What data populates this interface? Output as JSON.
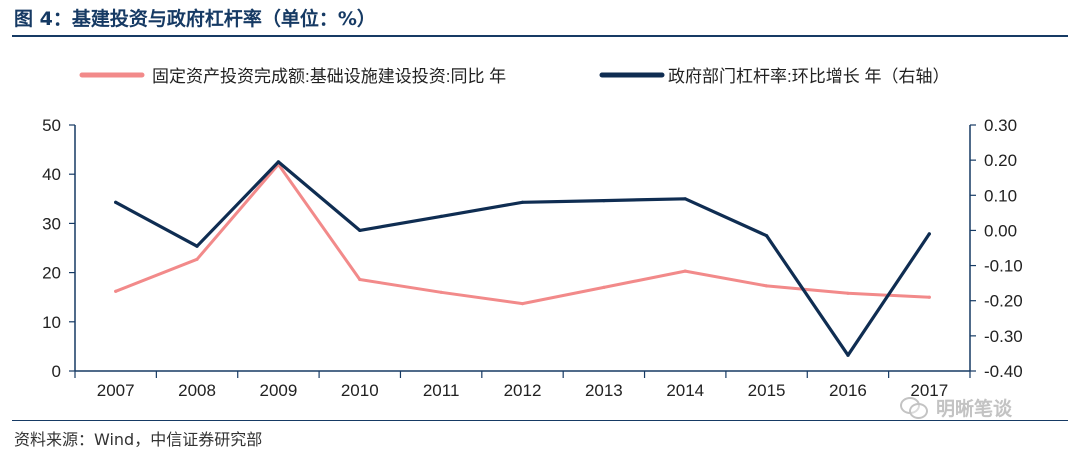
{
  "title": "图 4：基建投资与政府杠杆率（单位：%）",
  "source": "资料来源：Wind，中信证券研究部",
  "watermark": "明晰笔谈",
  "colors": {
    "title": "#163a64",
    "series1": "#f28a8a",
    "series2": "#0f2d52",
    "axis": "#163a64"
  },
  "chart_data": {
    "type": "line",
    "x": [
      "2007",
      "2008",
      "2009",
      "2010",
      "2011",
      "2012",
      "2013",
      "2014",
      "2015",
      "2016",
      "2017"
    ],
    "series": [
      {
        "name": "固定资产投资完成额:基础设施建设投资:同比 年",
        "axis": "left",
        "color": "#f28a8a",
        "x": [
          "2007",
          "2008",
          "2009",
          "2010",
          "2011",
          "2012",
          "2013",
          "2014",
          "2015",
          "2016",
          "2017"
        ],
        "values": [
          16.2,
          22.7,
          42.0,
          18.6,
          16.0,
          13.7,
          17.0,
          20.3,
          17.3,
          15.8,
          15.0
        ]
      },
      {
        "name": "政府部门杠杆率:环比增长 年（右轴）",
        "axis": "right",
        "color": "#0f2d52",
        "x": [
          "2007",
          "2008",
          "2009",
          "2010",
          "2011",
          "2012",
          "2013",
          "2014",
          "2015",
          "2016",
          "2017"
        ],
        "values": [
          0.08,
          -0.045,
          0.195,
          0.0,
          0.04,
          0.08,
          0.085,
          0.09,
          -0.015,
          -0.355,
          -0.01
        ]
      }
    ],
    "y_left": {
      "ticks": [
        "0",
        "10",
        "20",
        "30",
        "40",
        "50"
      ],
      "ylim": [
        0,
        50
      ]
    },
    "y_right": {
      "ticks": [
        "-0.40",
        "-0.30",
        "-0.20",
        "-0.10",
        "0.00",
        "0.10",
        "0.20",
        "0.30"
      ],
      "ylim": [
        -0.4,
        0.3
      ]
    },
    "legend": "top",
    "grid": false
  }
}
